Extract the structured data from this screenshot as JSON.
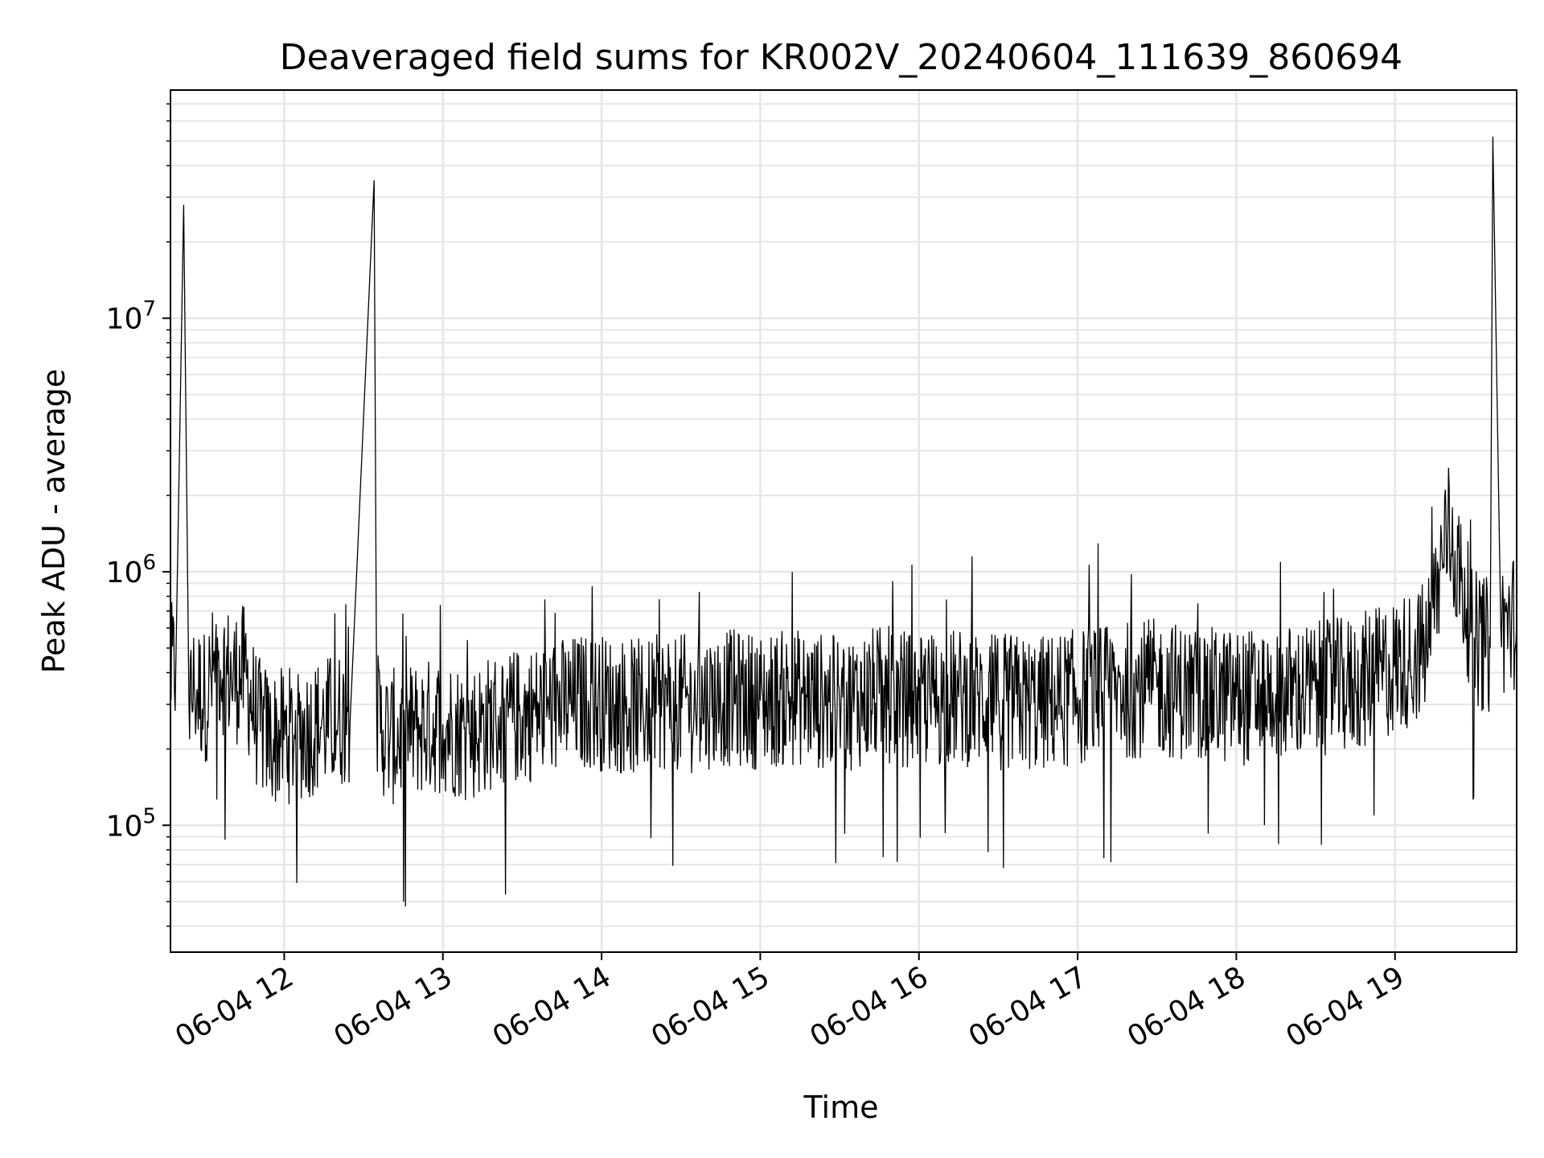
{
  "chart_data": {
    "type": "line",
    "title": "Deaveraged field sums for KR002V_20240604_111639_860694",
    "xlabel": "Time",
    "ylabel": "Peak ADU - average",
    "xscale": "date",
    "yscale": "log",
    "xlim": [
      "2024-06-04T11:17",
      "2024-06-04T19:46"
    ],
    "ylim": [
      31600,
      79400000
    ],
    "grid": true,
    "legend": "none",
    "line_color": "#000000",
    "x_ticks": [
      {
        "value": "2024-06-04T12:00",
        "label": "06-04 12"
      },
      {
        "value": "2024-06-04T13:00",
        "label": "06-04 13"
      },
      {
        "value": "2024-06-04T14:00",
        "label": "06-04 14"
      },
      {
        "value": "2024-06-04T15:00",
        "label": "06-04 15"
      },
      {
        "value": "2024-06-04T16:00",
        "label": "06-04 16"
      },
      {
        "value": "2024-06-04T17:00",
        "label": "06-04 17"
      },
      {
        "value": "2024-06-04T18:00",
        "label": "06-04 18"
      },
      {
        "value": "2024-06-04T19:00",
        "label": "06-04 19"
      }
    ],
    "y_ticks": [
      {
        "value": 100000,
        "base": "10",
        "exp": "5"
      },
      {
        "value": 1000000,
        "base": "10",
        "exp": "6"
      },
      {
        "value": 10000000,
        "base": "10",
        "exp": "7"
      }
    ],
    "series": [
      {
        "x": [
          "2024-06-04T11:17",
          "2024-06-04T11:19",
          "2024-06-04T11:22",
          "2024-06-04T11:24",
          "2024-06-04T11:26",
          "2024-06-04T11:30",
          "2024-06-04T11:35",
          "2024-06-04T11:40",
          "2024-06-04T11:45",
          "2024-06-04T11:50",
          "2024-06-04T11:55",
          "2024-06-04T12:05",
          "2024-06-04T12:15",
          "2024-06-04T12:25",
          "2024-06-04T12:34",
          "2024-06-04T12:35",
          "2024-06-04T12:40",
          "2024-06-04T12:50",
          "2024-06-04T13:00",
          "2024-06-04T13:10",
          "2024-06-04T13:20",
          "2024-06-04T13:30",
          "2024-06-04T13:40",
          "2024-06-04T13:48",
          "2024-06-04T13:55",
          "2024-06-04T14:05",
          "2024-06-04T14:15",
          "2024-06-04T14:25",
          "2024-06-04T14:35",
          "2024-06-04T14:45",
          "2024-06-04T15:00",
          "2024-06-04T15:15",
          "2024-06-04T15:30",
          "2024-06-04T15:45",
          "2024-06-04T16:00",
          "2024-06-04T16:15",
          "2024-06-04T16:30",
          "2024-06-04T16:45",
          "2024-06-04T17:00",
          "2024-06-04T17:15",
          "2024-06-04T17:30",
          "2024-06-04T17:45",
          "2024-06-04T18:00",
          "2024-06-04T18:15",
          "2024-06-04T18:30",
          "2024-06-04T18:45",
          "2024-06-04T18:55",
          "2024-06-04T19:05",
          "2024-06-04T19:12",
          "2024-06-04T19:20",
          "2024-06-04T19:30",
          "2024-06-04T19:36",
          "2024-06-04T19:37",
          "2024-06-04T19:40",
          "2024-06-04T19:46"
        ],
        "y": [
          400000,
          420000,
          28000000,
          300000,
          350000,
          320000,
          450000,
          380000,
          400000,
          250000,
          220000,
          230000,
          250000,
          270000,
          35000000,
          260000,
          220000,
          240000,
          250000,
          230000,
          260000,
          270000,
          290000,
          300000,
          310000,
          300000,
          290000,
          310000,
          300000,
          320000,
          310000,
          320000,
          300000,
          330000,
          310000,
          320000,
          310000,
          300000,
          320000,
          340000,
          350000,
          330000,
          320000,
          330000,
          340000,
          360000,
          400000,
          450000,
          500000,
          1500000,
          550000,
          500000,
          52000000,
          600000,
          650000
        ]
      }
    ]
  }
}
